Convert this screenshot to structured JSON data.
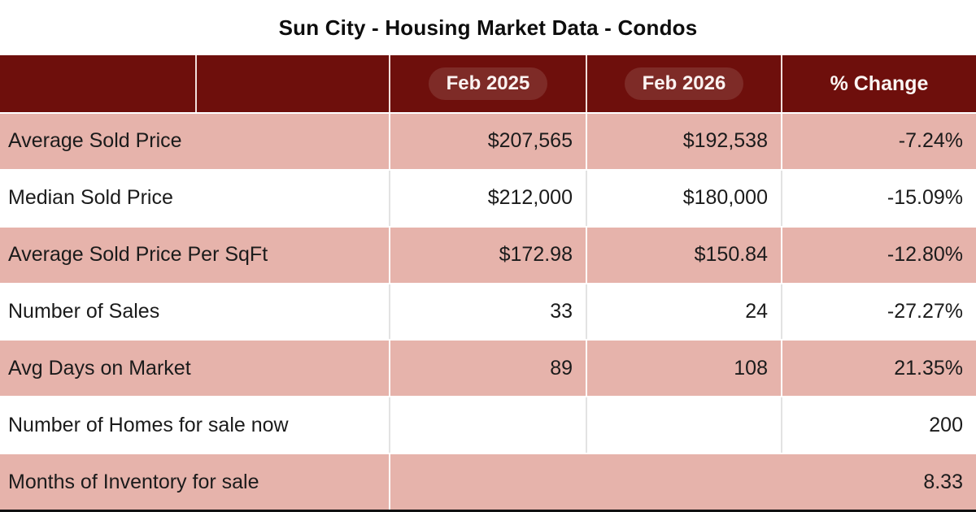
{
  "chart_data": {
    "type": "table",
    "title": "Sun City - Housing Market Data - Condos",
    "columns": [
      "",
      "Feb 2025",
      "Feb 2026",
      "% Change"
    ],
    "rows": [
      [
        "Average Sold Price",
        "$207,565",
        "$192,538",
        "-7.24%"
      ],
      [
        "Median Sold Price",
        "$212,000",
        "$180,000",
        "-15.09%"
      ],
      [
        "Average Sold Price Per SqFt",
        "$172.98",
        "$150.84",
        "-12.80%"
      ],
      [
        "Number of Sales",
        "33",
        "24",
        "-27.27%"
      ],
      [
        "Avg Days on Market",
        "89",
        "108",
        "21.35%"
      ],
      [
        "Number of Homes for sale now",
        "",
        "",
        "200"
      ],
      [
        "Months of Inventory for sale",
        "",
        "",
        "8.33"
      ]
    ],
    "layout": {
      "row_stripe_pattern": [
        "pink",
        "white",
        "pink",
        "white",
        "pink",
        "white",
        "pink"
      ],
      "label_column_merged_in_body": true,
      "last_row_value_columns_merged": true
    }
  },
  "colors": {
    "header_bg": "#6e0f0c",
    "header_pill_bg": "#7e2b27",
    "header_text": "#fbf3f1",
    "row_pink": "#e6b3ab",
    "row_white": "#ffffff",
    "body_text": "#1b1b1b",
    "title_text": "#0d0d0d",
    "bottom_bar": "#111111"
  }
}
